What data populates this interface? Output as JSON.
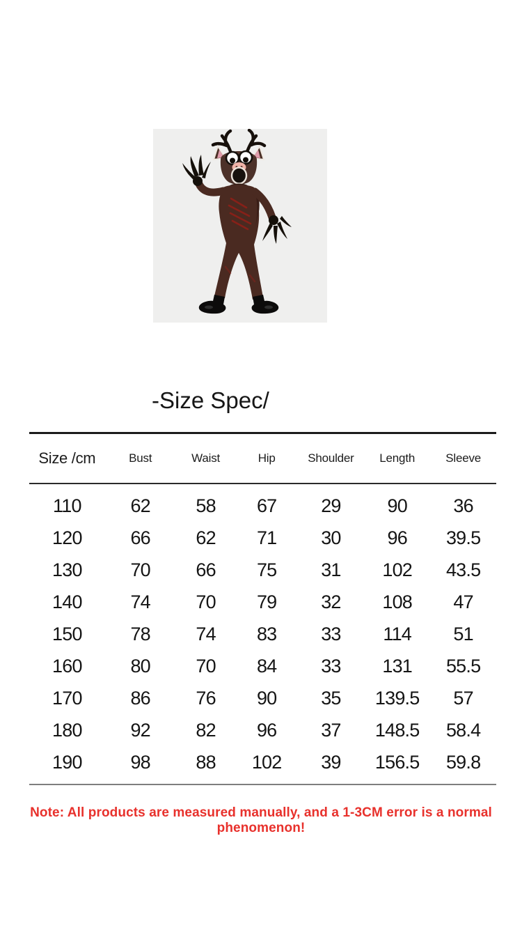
{
  "section": {
    "title": "-Size Spec/"
  },
  "product_image": {
    "label": "deer monster costume jumpsuit with antler mask and claw gloves",
    "background": "#efefee"
  },
  "size_table": {
    "unit_header": "Size /cm",
    "columns": [
      "Size /cm",
      "Bust",
      "Waist",
      "Hip",
      "Shoulder",
      "Length",
      "Sleeve"
    ],
    "rows": [
      [
        "110",
        "62",
        "58",
        "67",
        "29",
        "90",
        "36"
      ],
      [
        "120",
        "66",
        "62",
        "71",
        "30",
        "96",
        "39.5"
      ],
      [
        "130",
        "70",
        "66",
        "75",
        "31",
        "102",
        "43.5"
      ],
      [
        "140",
        "74",
        "70",
        "79",
        "32",
        "108",
        "47"
      ],
      [
        "150",
        "78",
        "74",
        "83",
        "33",
        "114",
        "51"
      ],
      [
        "160",
        "80",
        "70",
        "84",
        "33",
        "131",
        "55.5"
      ],
      [
        "170",
        "86",
        "76",
        "90",
        "35",
        "139.5",
        "57"
      ],
      [
        "180",
        "92",
        "82",
        "96",
        "37",
        "148.5",
        "58.4"
      ],
      [
        "190",
        "98",
        "88",
        "102",
        "39",
        "156.5",
        "59.8"
      ]
    ]
  },
  "note": {
    "text": "Note: All products are measured manually, and a 1-3CM error is a normal phenomenon!"
  },
  "colors": {
    "note_red": "#e8312c",
    "table_line_dark": "#1c1c1c",
    "table_line_gray": "#7e7e7e",
    "image_background": "#efefee",
    "text": "#151515"
  }
}
